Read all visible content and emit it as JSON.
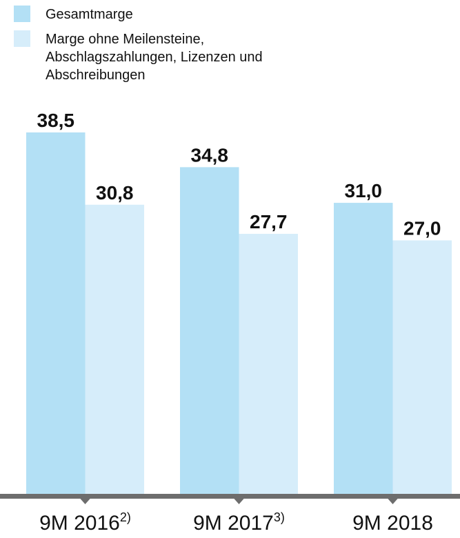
{
  "chart_data": {
    "type": "bar",
    "categories": [
      "9M 2016",
      "9M 2017",
      "9M 2018"
    ],
    "category_notes": [
      "2)",
      "3)",
      null
    ],
    "series": [
      {
        "name": "Gesamtmarge",
        "color": "#b3e0f5",
        "values": [
          38.5,
          34.8,
          31.0
        ],
        "value_labels": [
          "38,5",
          "34,8",
          "31,0"
        ]
      },
      {
        "name": "Marge ohne Meilensteine, Abschlagszahlungen, Lizenzen und Abschreibungen",
        "color": "#d6edfa",
        "values": [
          30.8,
          27.7,
          27.0
        ],
        "value_labels": [
          "30,8",
          "27,7",
          "27,0"
        ]
      }
    ],
    "legend": "top-left"
  }
}
